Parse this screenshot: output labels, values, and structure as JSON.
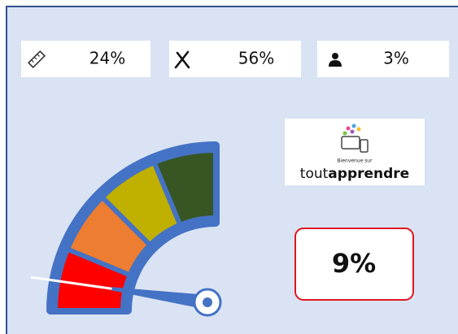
{
  "stats": [
    {
      "label": "24%"
    },
    {
      "label": "56%"
    },
    {
      "label": "3%"
    }
  ],
  "logo": {
    "caption": "Bienvenue sur",
    "name_light": "tout",
    "name_bold": "apprendre"
  },
  "gauge": {
    "value": 9,
    "label": "9%"
  }
}
